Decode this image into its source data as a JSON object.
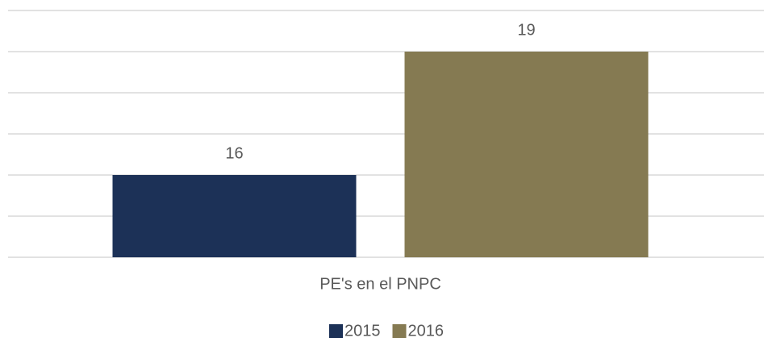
{
  "chart_data": {
    "type": "bar",
    "categories": [
      "PE's en el PNPC"
    ],
    "series": [
      {
        "name": "2015",
        "color": "#1c3157",
        "values": [
          16
        ]
      },
      {
        "name": "2016",
        "color": "#857a52",
        "values": [
          19
        ]
      }
    ],
    "ylim": [
      14,
      20
    ],
    "yticks": [
      14,
      15,
      16,
      17,
      18,
      19,
      20
    ],
    "grid": true,
    "legend": "bottom"
  }
}
